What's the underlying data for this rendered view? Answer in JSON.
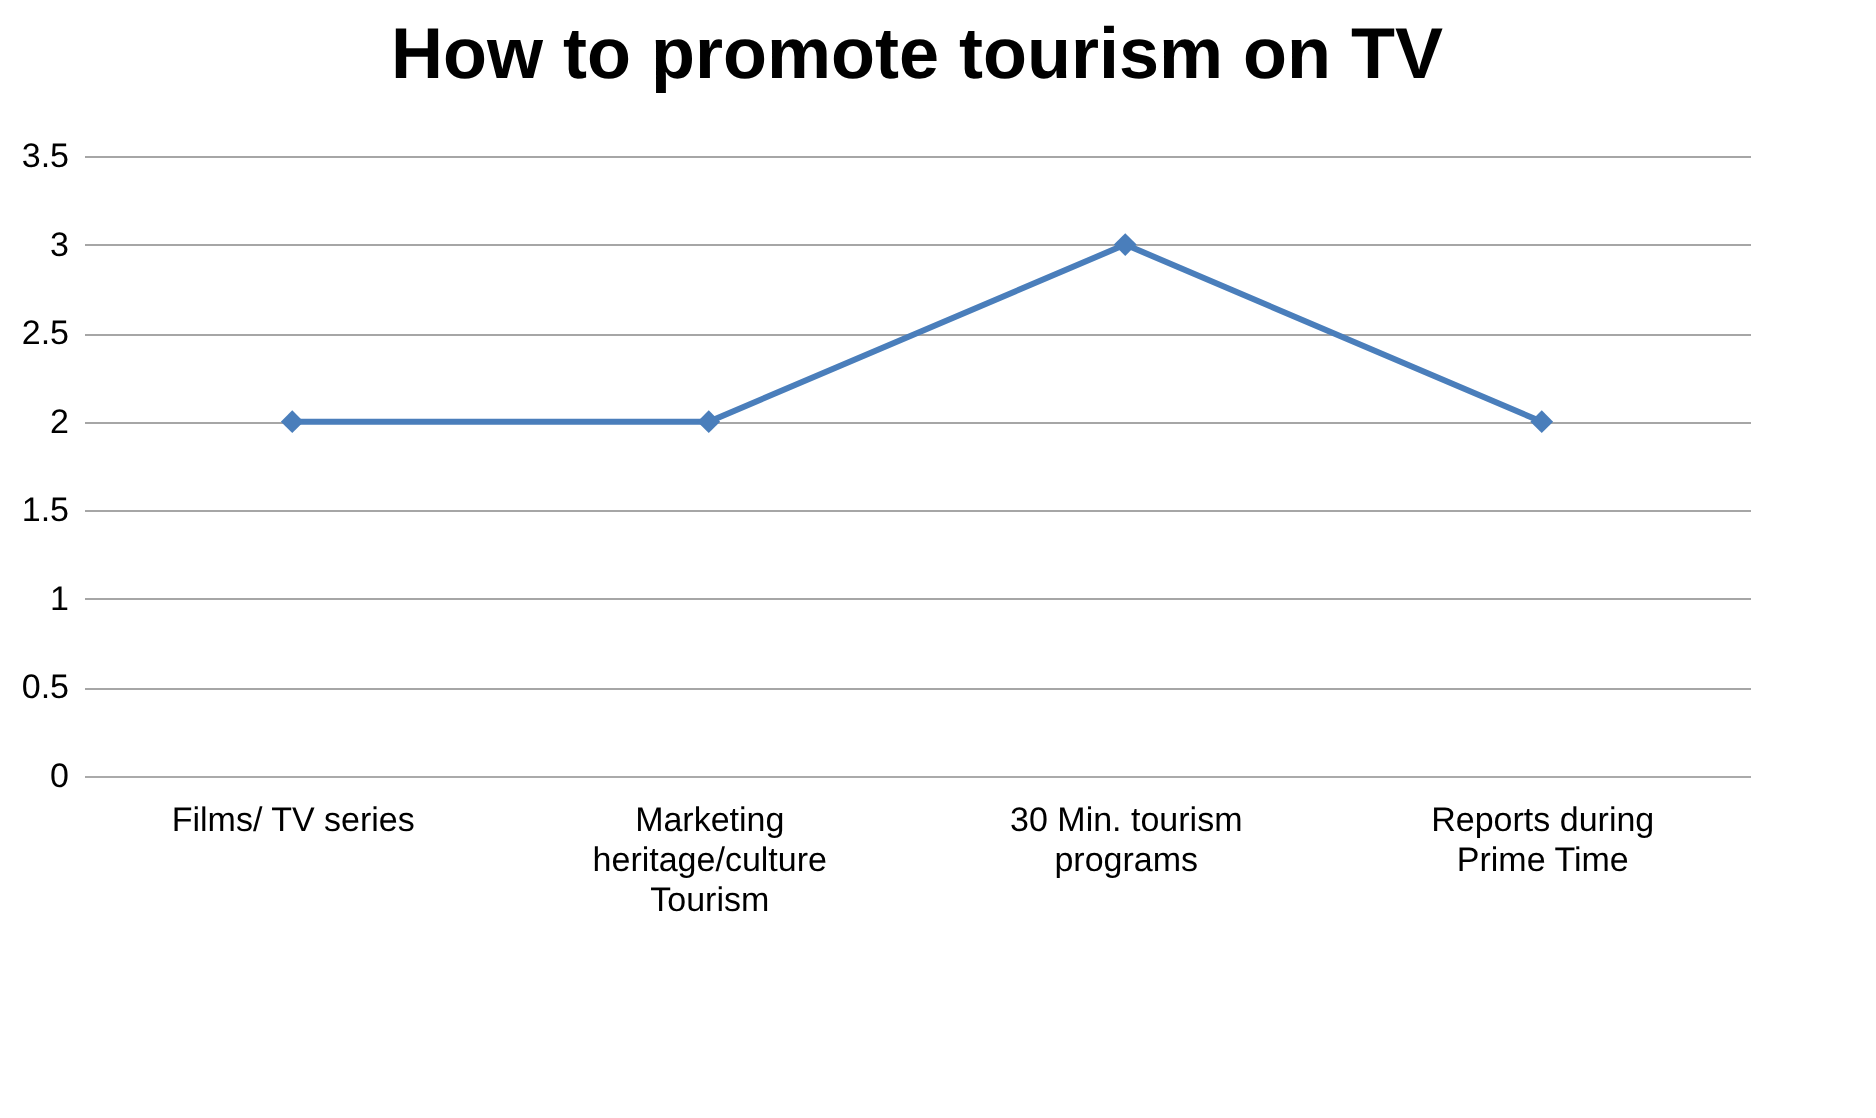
{
  "chart_data": {
    "type": "line",
    "title": "How to promote tourism on TV",
    "categories": [
      "Films/ TV series",
      "Marketing heritage/culture Tourism",
      "30 Min. tourism programs",
      "Reports during Prime Time"
    ],
    "series": [
      {
        "color": "#4a7ebb",
        "values": [
          2,
          2,
          3,
          2
        ]
      }
    ],
    "ylim": [
      0,
      3.5
    ],
    "yticks": [
      0,
      0.5,
      1,
      1.5,
      2,
      2.5,
      3,
      3.5
    ],
    "grid": "y",
    "marker": "diamond",
    "line_style": "solid"
  }
}
